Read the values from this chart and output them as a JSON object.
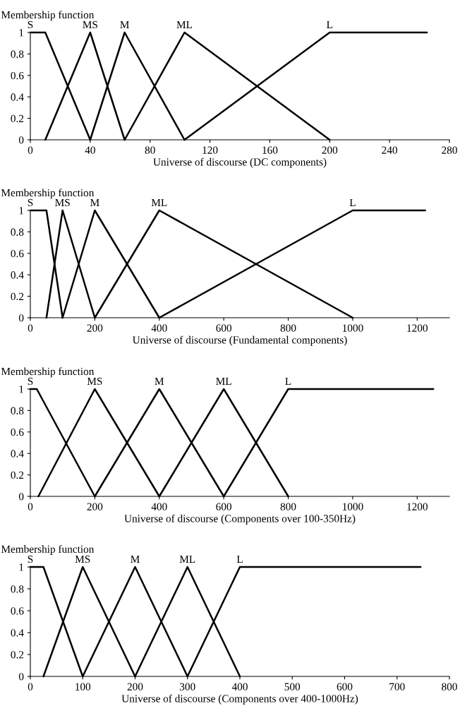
{
  "chart_data": [
    {
      "type": "line",
      "xlabel": "Universe of discourse (DC components)",
      "ylabel": "Membership function",
      "xlim": [
        0,
        280
      ],
      "xticks": [
        0,
        40,
        80,
        120,
        160,
        200,
        240,
        280
      ],
      "ylim": [
        0,
        1
      ],
      "yticks": [
        0,
        0.2,
        0.4,
        0.6,
        0.8,
        1
      ],
      "grid": false,
      "legend": false,
      "marker": "none",
      "line_style": "solid",
      "series": [
        {
          "name": "S",
          "color": "#000000",
          "x": [
            0,
            10,
            40
          ],
          "values": [
            1,
            1,
            0
          ]
        },
        {
          "name": "MS",
          "color": "#000000",
          "x": [
            10,
            40,
            63
          ],
          "values": [
            0,
            1,
            0
          ]
        },
        {
          "name": "M",
          "color": "#000000",
          "x": [
            40,
            63,
            103
          ],
          "values": [
            0,
            1,
            0
          ]
        },
        {
          "name": "ML",
          "color": "#000000",
          "x": [
            63,
            103,
            200
          ],
          "values": [
            0,
            1,
            0
          ]
        },
        {
          "name": "L",
          "color": "#000000",
          "x": [
            103,
            200,
            265
          ],
          "values": [
            0,
            1,
            1
          ]
        }
      ]
    },
    {
      "type": "line",
      "xlabel": "Universe of discourse (Fundamental components)",
      "ylabel": "Membership function",
      "xlim": [
        0,
        1300
      ],
      "xticks": [
        0,
        200,
        400,
        600,
        800,
        1000,
        1200
      ],
      "ylim": [
        0,
        1
      ],
      "yticks": [
        0,
        0.2,
        0.4,
        0.6,
        0.8,
        1
      ],
      "grid": false,
      "legend": false,
      "marker": "none",
      "line_style": "solid",
      "series": [
        {
          "name": "S",
          "color": "#000000",
          "x": [
            0,
            50,
            100
          ],
          "values": [
            1,
            1,
            0
          ]
        },
        {
          "name": "MS",
          "color": "#000000",
          "x": [
            50,
            100,
            200
          ],
          "values": [
            0,
            1,
            0
          ]
        },
        {
          "name": "M",
          "color": "#000000",
          "x": [
            100,
            200,
            400
          ],
          "values": [
            0,
            1,
            0
          ]
        },
        {
          "name": "ML",
          "color": "#000000",
          "x": [
            200,
            400,
            1000
          ],
          "values": [
            0,
            1,
            0
          ]
        },
        {
          "name": "L",
          "color": "#000000",
          "x": [
            400,
            1000,
            1225
          ],
          "values": [
            0,
            1,
            1
          ]
        }
      ]
    },
    {
      "type": "line",
      "xlabel": "Universe of discourse (Components over 100-350Hz)",
      "ylabel": "Membership function",
      "xlim": [
        0,
        1300
      ],
      "xticks": [
        0,
        200,
        400,
        600,
        800,
        1000,
        1200
      ],
      "ylim": [
        0,
        1
      ],
      "yticks": [
        0,
        0.2,
        0.4,
        0.6,
        0.8,
        1
      ],
      "grid": false,
      "legend": false,
      "marker": "none",
      "line_style": "solid",
      "series": [
        {
          "name": "S",
          "color": "#000000",
          "x": [
            0,
            20,
            200
          ],
          "values": [
            1,
            1,
            0
          ]
        },
        {
          "name": "MS",
          "color": "#000000",
          "x": [
            25,
            200,
            400
          ],
          "values": [
            0,
            1,
            0
          ]
        },
        {
          "name": "M",
          "color": "#000000",
          "x": [
            200,
            400,
            600
          ],
          "values": [
            0,
            1,
            0
          ]
        },
        {
          "name": "ML",
          "color": "#000000",
          "x": [
            400,
            600,
            800
          ],
          "values": [
            0,
            1,
            0
          ]
        },
        {
          "name": "L",
          "color": "#000000",
          "x": [
            600,
            800,
            1250
          ],
          "values": [
            0,
            1,
            1
          ]
        }
      ]
    },
    {
      "type": "line",
      "xlabel": "Universe of discourse (Components over 400-1000Hz)",
      "ylabel": "Membership function",
      "xlim": [
        0,
        800
      ],
      "xticks": [
        0,
        100,
        200,
        300,
        400,
        500,
        600,
        700,
        800
      ],
      "ylim": [
        0,
        1
      ],
      "yticks": [
        0,
        0.2,
        0.4,
        0.6,
        0.8,
        1
      ],
      "grid": false,
      "legend": false,
      "marker": "none",
      "line_style": "solid",
      "series": [
        {
          "name": "S",
          "color": "#000000",
          "x": [
            0,
            25,
            100
          ],
          "values": [
            1,
            1,
            0
          ]
        },
        {
          "name": "MS",
          "color": "#000000",
          "x": [
            25,
            100,
            200
          ],
          "values": [
            0,
            1,
            0
          ]
        },
        {
          "name": "M",
          "color": "#000000",
          "x": [
            100,
            200,
            300
          ],
          "values": [
            0,
            1,
            0
          ]
        },
        {
          "name": "ML",
          "color": "#000000",
          "x": [
            200,
            300,
            400
          ],
          "values": [
            0,
            1,
            0
          ]
        },
        {
          "name": "L",
          "color": "#000000",
          "x": [
            300,
            400,
            745
          ],
          "values": [
            0,
            1,
            1
          ]
        }
      ]
    }
  ]
}
